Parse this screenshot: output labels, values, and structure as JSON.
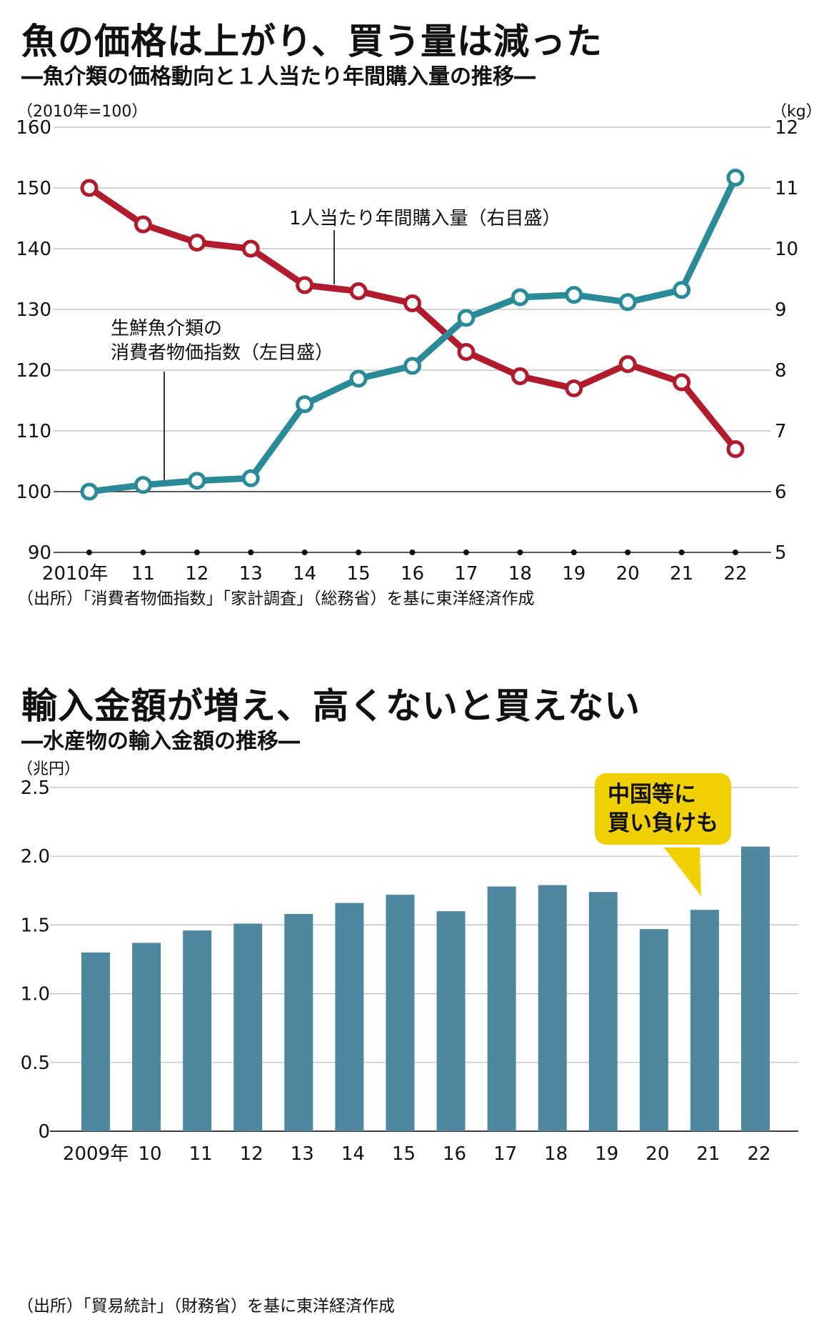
{
  "colors": {
    "accent_yellow": "#f0d000",
    "price_line": "#2a8a98",
    "purchase_line": "#b01c2e",
    "bar": "#4f87a0",
    "gridline": "#bbbbbb"
  },
  "chart1": {
    "title": "魚の価格は上がり、買う量は減った",
    "subtitle": "―魚介類の価格動向と１人当たり年間購入量の推移―",
    "left_unit": "（2010年=100）",
    "right_unit": "（kg）",
    "source": "（出所）「消費者物価指数」「家計調査」（総務省）を基に東洋経済作成",
    "label_purchase": "1人当たり年間購入量（右目盛）",
    "label_price_line1": "生鮮魚介類の",
    "label_price_line2": "消費者物価指数（左目盛）"
  },
  "chart2": {
    "title": "輸入金額が増え、高くないと買えない",
    "subtitle": "―水産物の輸入金額の推移―",
    "unit": "（兆円）",
    "source": "（出所）「貿易統計」（財務省）を基に東洋経済作成",
    "callout": "中国等に\n買い負けも"
  },
  "chart_data": [
    {
      "type": "line",
      "title": "魚の価格は上がり、買う量は減った",
      "subtitle": "―魚介類の価格動向と１人当たり年間購入量の推移―",
      "x": [
        "2010年",
        "11",
        "12",
        "13",
        "14",
        "15",
        "16",
        "17",
        "18",
        "19",
        "20",
        "21",
        "22"
      ],
      "left_axis": {
        "unit": "（2010年=100）",
        "ylim": [
          90,
          160
        ],
        "ticks": [
          90,
          100,
          110,
          120,
          130,
          140,
          150,
          160
        ]
      },
      "right_axis": {
        "unit": "（kg）",
        "ylim": [
          5,
          12
        ],
        "ticks": [
          5,
          6,
          7,
          8,
          9,
          10,
          11,
          12
        ]
      },
      "series": [
        {
          "name": "生鮮魚介類の消費者物価指数（左目盛）",
          "axis": "left",
          "values": [
            100.0,
            101.1,
            101.8,
            102.2,
            114.4,
            118.6,
            120.7,
            128.6,
            132.0,
            132.4,
            131.2,
            133.2,
            151.7
          ]
        },
        {
          "name": "1人当たり年間購入量（右目盛）",
          "axis": "right",
          "values": [
            11.0,
            10.4,
            10.1,
            10.0,
            9.4,
            9.3,
            9.1,
            8.3,
            7.9,
            7.7,
            8.1,
            7.8,
            6.7
          ]
        }
      ],
      "grid": true
    },
    {
      "type": "bar",
      "title": "輸入金額が増え、高くないと買えない",
      "subtitle": "―水産物の輸入金額の推移―",
      "ylabel": "（兆円）",
      "categories": [
        "2009年",
        "10",
        "11",
        "12",
        "13",
        "14",
        "15",
        "16",
        "17",
        "18",
        "19",
        "20",
        "21",
        "22"
      ],
      "values": [
        1.3,
        1.37,
        1.46,
        1.51,
        1.58,
        1.66,
        1.72,
        1.6,
        1.78,
        1.79,
        1.74,
        1.47,
        1.61,
        2.07
      ],
      "ylim": [
        0,
        2.5
      ],
      "ticks": [
        "0",
        "0.5",
        "1.0",
        "1.5",
        "2.0",
        "2.5"
      ],
      "grid": true
    }
  ]
}
